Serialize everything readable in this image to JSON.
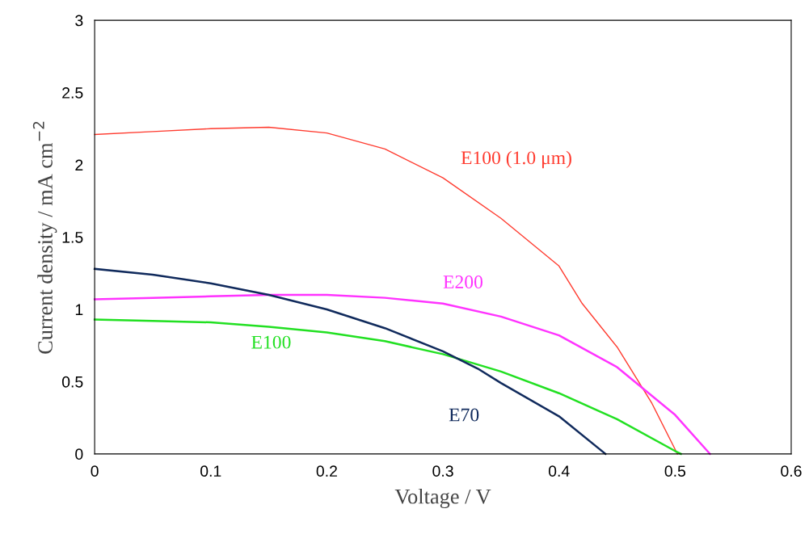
{
  "chart_data": {
    "type": "line",
    "xlabel": "Voltage / V",
    "ylabel": "Current density / mA cm$^{−2}$",
    "xlim": [
      0,
      0.6
    ],
    "ylim": [
      0,
      3
    ],
    "xticks": [
      0,
      0.1,
      0.2,
      0.3,
      0.4,
      0.5,
      0.6
    ],
    "yticks": [
      0,
      0.5,
      1,
      1.5,
      2,
      2.5,
      3
    ],
    "grid": false,
    "legend": false,
    "marker": "none",
    "line_style": "solid",
    "series": [
      {
        "name": "E100 (1.0 μm)",
        "color": "#ff3b2f",
        "x": [
          0,
          0.05,
          0.1,
          0.15,
          0.2,
          0.25,
          0.3,
          0.35,
          0.4,
          0.42,
          0.45,
          0.48,
          0.502
        ],
        "values": [
          2.21,
          2.23,
          2.25,
          2.26,
          2.22,
          2.11,
          1.91,
          1.63,
          1.3,
          1.04,
          0.74,
          0.35,
          0
        ]
      },
      {
        "name": "E200",
        "color": "#ff33ff",
        "x": [
          0,
          0.05,
          0.1,
          0.15,
          0.2,
          0.25,
          0.3,
          0.35,
          0.4,
          0.45,
          0.5,
          0.53
        ],
        "values": [
          1.07,
          1.08,
          1.09,
          1.1,
          1.1,
          1.08,
          1.04,
          0.95,
          0.82,
          0.6,
          0.27,
          0
        ]
      },
      {
        "name": "E100",
        "color": "#22e022",
        "x": [
          0,
          0.05,
          0.1,
          0.15,
          0.2,
          0.25,
          0.3,
          0.35,
          0.4,
          0.45,
          0.5,
          0.505
        ],
        "values": [
          0.93,
          0.92,
          0.91,
          0.88,
          0.84,
          0.78,
          0.69,
          0.57,
          0.42,
          0.24,
          0.02,
          0
        ]
      },
      {
        "name": "E70",
        "color": "#102a5c",
        "x": [
          0,
          0.05,
          0.1,
          0.15,
          0.2,
          0.25,
          0.3,
          0.33,
          0.35,
          0.4,
          0.44
        ],
        "values": [
          1.28,
          1.24,
          1.18,
          1.1,
          1.0,
          0.87,
          0.71,
          0.59,
          0.49,
          0.26,
          0
        ]
      }
    ]
  }
}
